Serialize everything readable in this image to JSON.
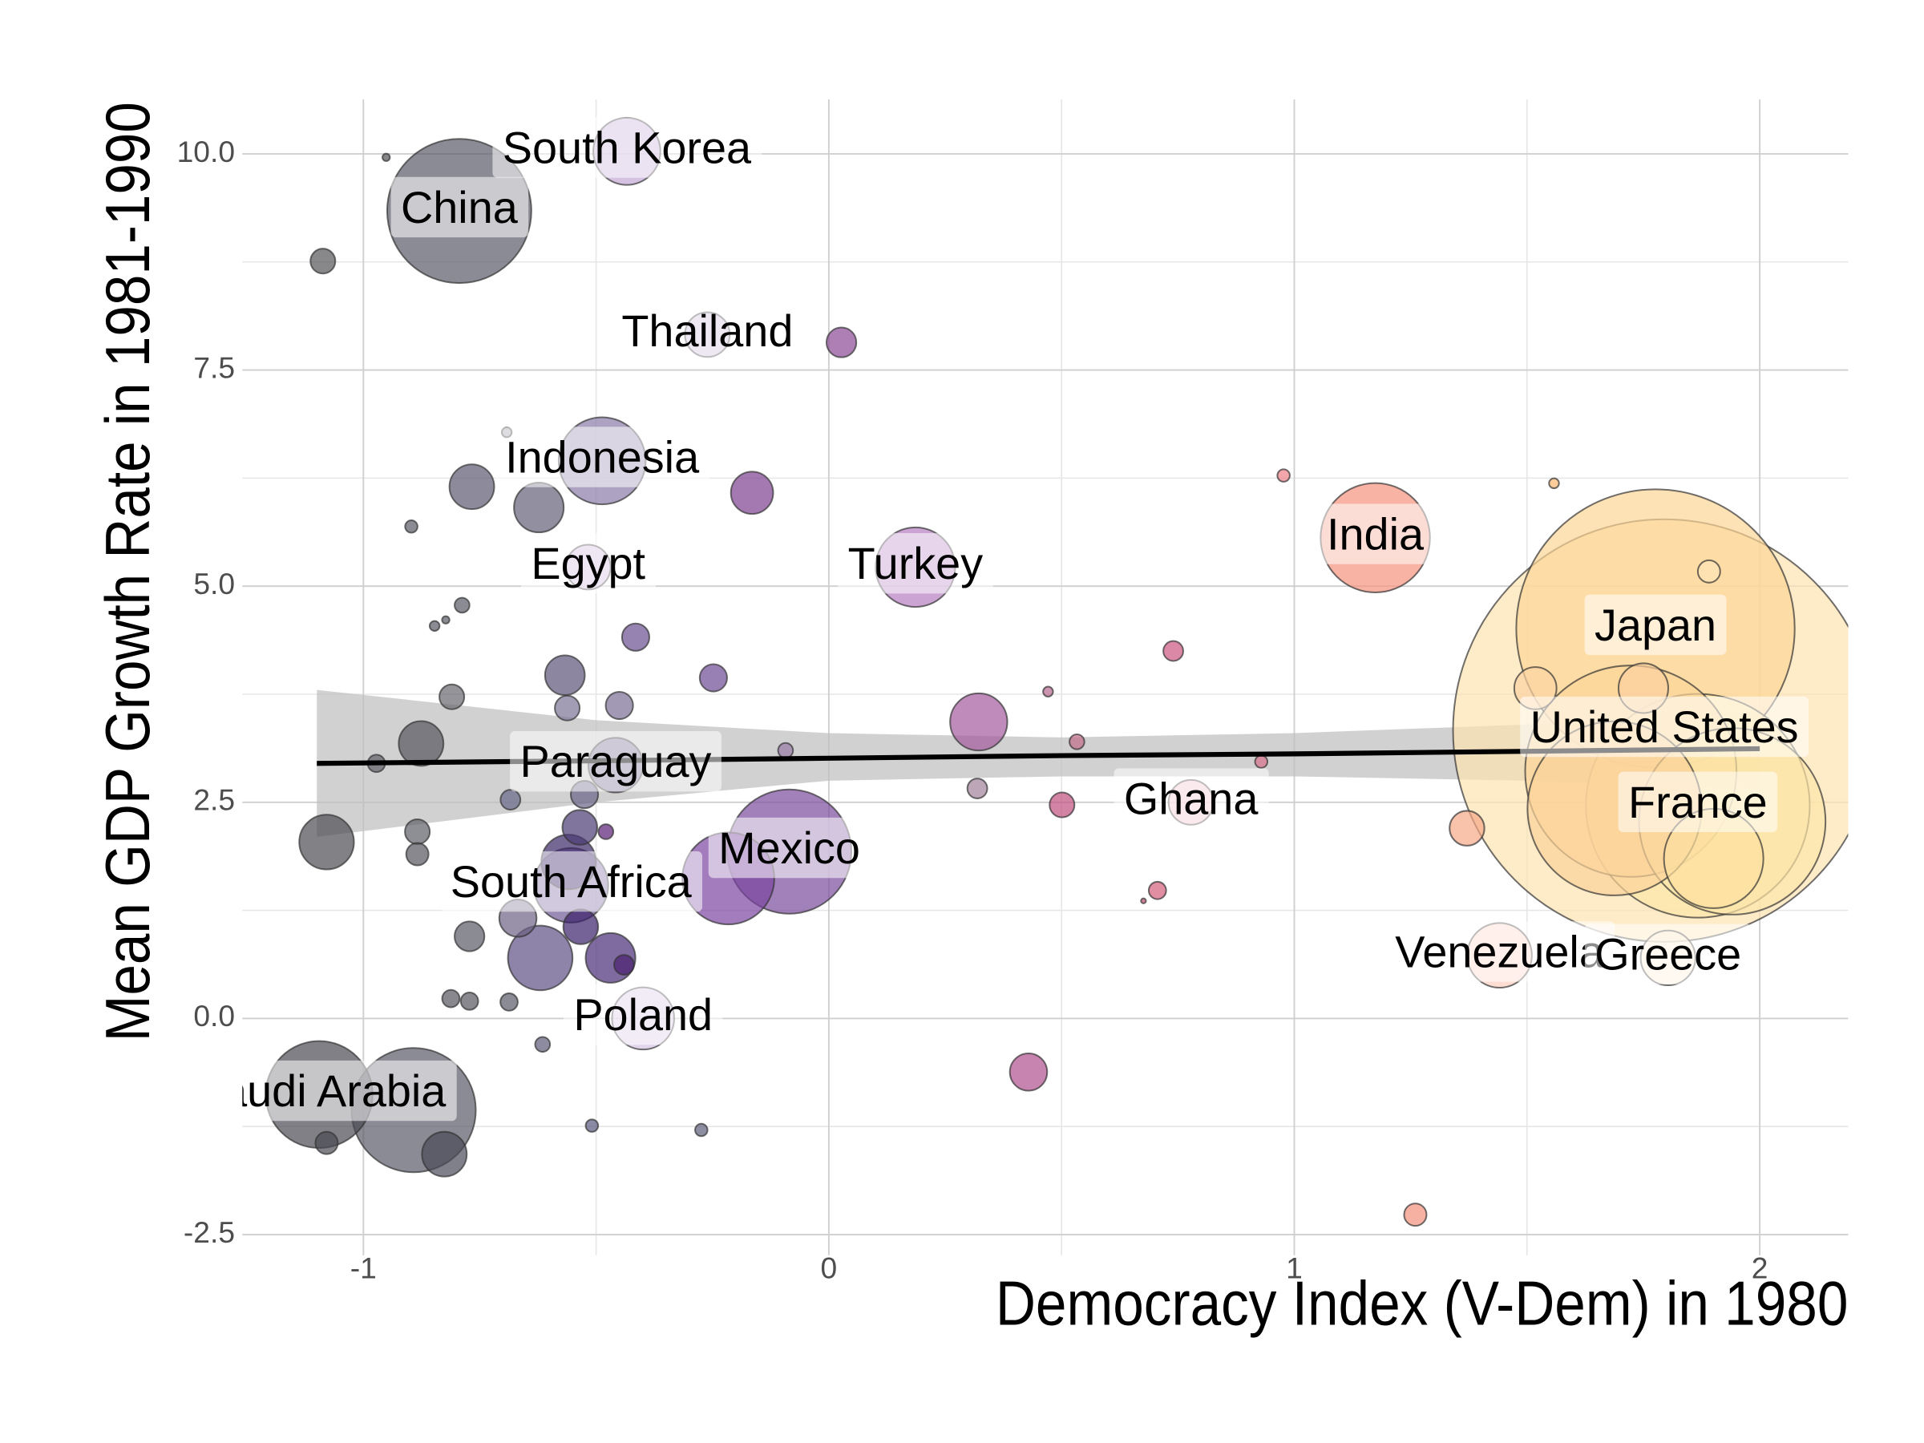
{
  "chart_data": {
    "type": "bubble",
    "x_label": "Democracy Index (V-Dem) in 1980",
    "y_label": "Mean GDP Growth Rate in 1981-1990",
    "xlim": [
      -1.26,
      2.19
    ],
    "ylim": [
      -2.74,
      10.63
    ],
    "xticks": [
      -1,
      0,
      1,
      2
    ],
    "yticks": [
      {
        "value": -2.5,
        "label": "-2.5"
      },
      {
        "value": 0,
        "label": "0.0"
      },
      2.5,
      {
        "value": 5,
        "label": "5.0"
      },
      7.5,
      {
        "value": 10,
        "label": "10.0"
      }
    ],
    "xminor": [
      -0.5,
      0.5,
      1.5
    ],
    "yminor": [
      -1.25,
      1.25,
      3.75,
      6.25,
      8.75
    ],
    "grid": true,
    "labels": [
      "United States",
      "Japan",
      "France",
      null,
      null,
      null,
      "China",
      "Mexico",
      null,
      "India",
      "Saudi Arabia",
      null,
      null,
      "Indonesia",
      "Turkey",
      "South Africa",
      "South Korea",
      "Venezuela",
      null,
      "Poland",
      null,
      "Paraguay",
      "Greece",
      null,
      null,
      null,
      null,
      null,
      "Thailand",
      "Egypt",
      "Ghana",
      null,
      null,
      null,
      null,
      null,
      null,
      null,
      null,
      null,
      null,
      null,
      null,
      null,
      null,
      null,
      null,
      null,
      null,
      null,
      null,
      null,
      null,
      null,
      null,
      null,
      null,
      null,
      null,
      null,
      null,
      null,
      null,
      null,
      null,
      null,
      null,
      null,
      null,
      null,
      null,
      null,
      null,
      null,
      null,
      null,
      null,
      null,
      null,
      null,
      null,
      null,
      null
    ],
    "x": [
      1.795,
      1.776,
      1.867,
      1.723,
      1.941,
      1.688,
      -0.794,
      -0.085,
      -0.892,
      1.174,
      -1.095,
      1.901,
      -0.216,
      -0.487,
      0.186,
      -0.554,
      -0.434,
      1.441,
      -0.62,
      -0.399,
      0.322,
      -0.458,
      1.803,
      -1.079,
      -0.559,
      -0.623,
      -0.469,
      1.75,
      -0.261,
      -0.517,
      0.778,
      -0.767,
      -0.876,
      -0.826,
      -0.165,
      1.518,
      -0.567,
      -0.668,
      0.429,
      1.371,
      -0.535,
      -0.533,
      -0.772,
      0.027,
      -0.415,
      -0.248,
      -0.45,
      -0.525,
      -1.087,
      -0.81,
      -0.562,
      0.501,
      -0.884,
      1.891,
      -0.884,
      -1.079,
      1.26,
      0.74,
      0.319,
      -0.684,
      -0.44,
      0.706,
      -0.972,
      -0.687,
      -0.812,
      -0.772,
      -0.788,
      0.533,
      -0.093,
      -0.479,
      -0.615,
      -0.897,
      0.977,
      0.929,
      -0.509,
      -0.274,
      -0.692,
      1.558,
      -0.847,
      0.471,
      -0.823,
      -0.951,
      0.676
    ],
    "values": [
      3.33,
      4.51,
      2.46,
      2.86,
      2.28,
      2.43,
      9.34,
      1.93,
      -1.06,
      5.56,
      -0.88,
      1.85,
      1.62,
      6.45,
      5.22,
      1.54,
      10.03,
      0.73,
      0.7,
      0.0,
      3.43,
      2.93,
      0.7,
      2.04,
      1.81,
      5.91,
      0.7,
      3.82,
      7.91,
      5.22,
      2.5,
      6.15,
      3.18,
      -1.57,
      6.08,
      3.82,
      3.97,
      1.16,
      -0.62,
      2.2,
      2.21,
      1.06,
      0.95,
      7.82,
      4.41,
      3.94,
      3.62,
      2.59,
      8.76,
      3.72,
      3.59,
      2.47,
      2.16,
      5.17,
      1.9,
      -1.44,
      -2.27,
      4.25,
      2.66,
      2.53,
      0.62,
      1.48,
      2.95,
      0.19,
      0.23,
      0.2,
      4.78,
      3.2,
      3.1,
      2.16,
      -0.3,
      5.69,
      6.28,
      2.97,
      -1.24,
      -1.29,
      6.78,
      6.19,
      4.54,
      3.78,
      4.61,
      9.96,
      1.36
    ],
    "sizes": [
      170,
      112,
      90,
      85,
      75,
      70,
      58,
      50,
      50,
      44,
      43,
      40,
      37,
      35,
      32,
      30,
      27,
      26,
      26,
      25,
      23,
      22,
      22,
      22,
      22,
      20,
      20,
      20,
      18,
      18,
      18,
      18,
      18,
      18,
      17,
      17,
      16,
      15,
      15,
      14,
      14,
      14,
      12,
      12,
      11,
      11,
      11,
      11,
      10,
      10,
      10,
      10,
      10,
      9,
      9,
      9,
      9,
      8,
      8,
      8,
      8,
      7,
      7,
      7,
      7,
      7,
      6,
      6,
      6,
      6,
      6,
      5,
      5,
      5,
      5,
      5,
      4,
      4,
      4,
      4,
      3,
      3,
      2
    ],
    "colors": [
      "#fde2b0",
      "#fcd596",
      "#fde7a6",
      "#fcd69a",
      "#fce6a8",
      "#fbd39a",
      "#5a5a68",
      "#7a4a9c",
      "#5a5a68",
      "#f7937e",
      "#4a4a52",
      "#fce0a0",
      "#7a44a0",
      "#8a7aa8",
      "#b57ec0",
      "#6e5a96",
      "#c3a8d6",
      "#fdd0c0",
      "#5e4e84",
      "#d6c2e2",
      "#a45a9e",
      "#7a6e94",
      "#fdecd4",
      "#4c4c52",
      "#3c2868",
      "#626078",
      "#4a2c78",
      "#fbd0a0",
      "#cbb6d8",
      "#cdb8dc",
      "#f3bcc6",
      "#5c5870",
      "#55555e",
      "#4a4a58",
      "#7e4090",
      "#fbd3a2",
      "#5c5278",
      "#6e6284",
      "#b0508e",
      "#f6a888",
      "#4a3a74",
      "#3a206a",
      "#5a5a66",
      "#8a4896",
      "#6a4e90",
      "#6e4a94",
      "#7a6e96",
      "#6a6488",
      "#55555a",
      "#66666e",
      "#7a7494",
      "#c04e7e",
      "#5e5e68",
      "#fde4b8",
      "#55555e",
      "#4a4a52",
      "#f2907a",
      "#cc5480",
      "#a08098",
      "#66668a",
      "#4a2070",
      "#d45c7a",
      "#606068",
      "#5a5a6a",
      "#55555e",
      "#55555e",
      "#5a5a66",
      "#c06c88",
      "#9a7aa8",
      "#5a1e78",
      "#5c5a78",
      "#5a5a66",
      "#ee8088",
      "#d8708a",
      "#5a5a80",
      "#5e5e7a",
      "#9090a0",
      "#fbb870",
      "#5a5a66",
      "#b86890",
      "#5a5a66",
      "#55555a",
      "#c05070"
    ],
    "trend": {
      "x": [
        -1.1,
        -0.5,
        0,
        0.5,
        1,
        1.5,
        2.0
      ],
      "y": [
        2.95,
        2.98,
        3.01,
        3.04,
        3.06,
        3.09,
        3.12
      ],
      "lower": [
        2.1,
        2.5,
        2.75,
        2.8,
        2.8,
        2.75,
        2.65
      ],
      "upper": [
        3.8,
        3.45,
        3.3,
        3.25,
        3.3,
        3.4,
        3.55
      ]
    },
    "trend_color": "#000000",
    "ribbon_color": "#bdbdbd"
  }
}
